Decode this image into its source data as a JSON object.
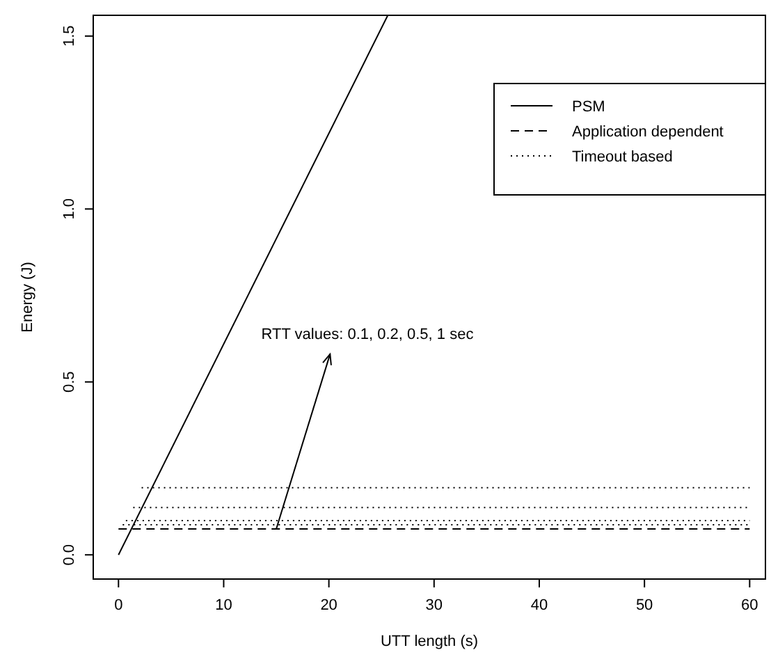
{
  "chart_data": {
    "type": "line",
    "xlabel": "UTT length (s)",
    "ylabel": "Energy (J)",
    "xlim": [
      -2.4,
      61.5
    ],
    "ylim": [
      -0.07,
      1.56
    ],
    "xticks": [
      0,
      10,
      20,
      30,
      40,
      50,
      60
    ],
    "yticks": [
      {
        "value": 0,
        "label": "0.0"
      },
      {
        "value": 0.5,
        "label": "0.5"
      },
      {
        "value": 1,
        "label": "1.0"
      },
      {
        "value": 1.5,
        "label": "1.5"
      }
    ],
    "grid": false,
    "legend": "top right",
    "series": [
      {
        "name": "PSM",
        "color": "#000000",
        "line_style": "solid",
        "x": [
          0,
          25.6
        ],
        "values": [
          0,
          1.56
        ]
      },
      {
        "name": "Application dependent",
        "color": "#000000",
        "line_style": "dashed",
        "x": [
          0,
          60
        ],
        "values": [
          0.075,
          0.075
        ]
      },
      {
        "name": "Timeout based",
        "color": "#000000",
        "line_style": "dotted",
        "x": [
          0.4,
          60
        ],
        "values": [
          0.087,
          0.087
        ]
      },
      {
        "color": "#000000",
        "line_style": "dotted",
        "x": [
          0.7,
          60
        ],
        "values": [
          0.099,
          0.099
        ]
      },
      {
        "color": "#000000",
        "line_style": "dotted",
        "x": [
          1.4,
          60
        ],
        "values": [
          0.137,
          0.137
        ]
      },
      {
        "color": "#000000",
        "line_style": "dotted",
        "x": [
          2.2,
          60
        ],
        "values": [
          0.194,
          0.194
        ]
      }
    ],
    "annotations": [
      {
        "text": "RTT values: 0.1, 0.2, 0.5, 1 sec",
        "x": 15,
        "y": 0.075
      }
    ]
  }
}
